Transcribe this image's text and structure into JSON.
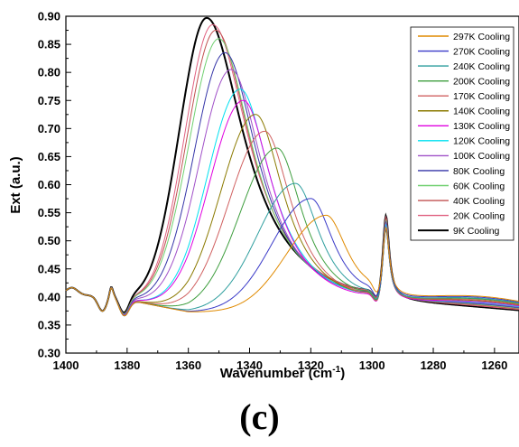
{
  "panel_label": "(c)",
  "chart_data": {
    "type": "line",
    "title": "",
    "xlabel": "Wavenumber (cm",
    "xlabel_sup": "-1",
    "xlabel_end": ")",
    "ylabel": "Ext (a.u.)",
    "xlim": [
      1400,
      1252
    ],
    "ylim": [
      0.3,
      0.9
    ],
    "x_reversed": true,
    "grid": false,
    "legend_position": "top-right",
    "xticks": [
      1400,
      1380,
      1360,
      1340,
      1320,
      1300,
      1280,
      1260
    ],
    "yticks": [
      "0.30",
      "0.35",
      "0.40",
      "0.45",
      "0.50",
      "0.55",
      "0.60",
      "0.65",
      "0.70",
      "0.75",
      "0.80",
      "0.85",
      "0.90"
    ],
    "series": [
      {
        "name": "297K Cooling",
        "color": "#E08A00",
        "peak_x": 1315,
        "peak_y": 0.545
      },
      {
        "name": "270K Cooling",
        "color": "#3A3AC8",
        "peak_x": 1320,
        "peak_y": 0.575
      },
      {
        "name": "240K Cooling",
        "color": "#2E9E9E",
        "peak_x": 1325,
        "peak_y": 0.602
      },
      {
        "name": "200K Cooling",
        "color": "#3E9E3E",
        "peak_x": 1331,
        "peak_y": 0.665
      },
      {
        "name": "170K Cooling",
        "color": "#D06060",
        "peak_x": 1335,
        "peak_y": 0.695
      },
      {
        "name": "140K Cooling",
        "color": "#8B7A00",
        "peak_x": 1338,
        "peak_y": 0.725
      },
      {
        "name": "130K Cooling",
        "color": "#E000E0",
        "peak_x": 1342,
        "peak_y": 0.75
      },
      {
        "name": "120K Cooling",
        "color": "#00E0F0",
        "peak_x": 1343,
        "peak_y": 0.77
      },
      {
        "name": "100K Cooling",
        "color": "#A050C8",
        "peak_x": 1346,
        "peak_y": 0.805
      },
      {
        "name": "80K Cooling",
        "color": "#3535A8",
        "peak_x": 1348,
        "peak_y": 0.835
      },
      {
        "name": "60K Cooling",
        "color": "#70D070",
        "peak_x": 1350,
        "peak_y": 0.86
      },
      {
        "name": "40K Cooling",
        "color": "#C05050",
        "peak_x": 1351,
        "peak_y": 0.875
      },
      {
        "name": "20K Cooling",
        "color": "#E06080",
        "peak_x": 1352,
        "peak_y": 0.885
      },
      {
        "name": "9K Cooling",
        "color": "#000000",
        "peak_x": 1354,
        "peak_y": 0.897
      }
    ]
  }
}
